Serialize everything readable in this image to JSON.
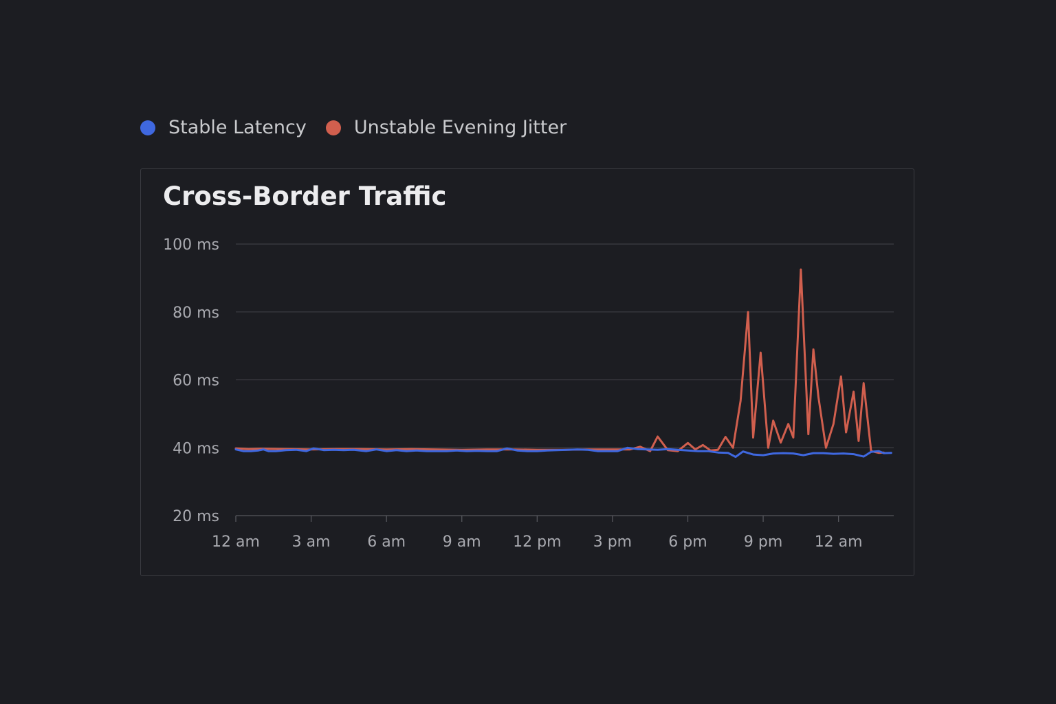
{
  "legend": [
    {
      "label": "Stable Latency",
      "color": "#3f68e0"
    },
    {
      "label": "Unstable Evening Jitter",
      "color": "#d15f4e"
    }
  ],
  "chart_data": {
    "type": "line",
    "title": "Cross-Border Traffic",
    "xlabel": "",
    "ylabel": "",
    "ylim": [
      20,
      100
    ],
    "xlim": [
      0,
      26.2
    ],
    "x_unit": "hours since 12 am",
    "grid": true,
    "legend_position": "top-left",
    "y_ticks": [
      {
        "value": 20,
        "label": "20 ms"
      },
      {
        "value": 40,
        "label": "40 ms"
      },
      {
        "value": 60,
        "label": "60 ms"
      },
      {
        "value": 80,
        "label": "80 ms"
      },
      {
        "value": 100,
        "label": "100 ms"
      }
    ],
    "x_ticks": [
      {
        "value": 0,
        "label": "12 am"
      },
      {
        "value": 3,
        "label": "3 am"
      },
      {
        "value": 6,
        "label": "6 am"
      },
      {
        "value": 9,
        "label": "9 am"
      },
      {
        "value": 12,
        "label": "12 pm"
      },
      {
        "value": 15,
        "label": "3 pm"
      },
      {
        "value": 18,
        "label": "6 pm"
      },
      {
        "value": 21,
        "label": "9 pm"
      },
      {
        "value": 24,
        "label": "12 am"
      }
    ],
    "series": [
      {
        "name": "Stable Latency",
        "color": "#3f68e0",
        "x": [
          0,
          0.3,
          0.6,
          0.9,
          1.1,
          1.3,
          1.6,
          2.0,
          2.4,
          2.8,
          3.1,
          3.5,
          3.9,
          4.3,
          4.7,
          5.2,
          5.6,
          6.0,
          6.4,
          6.8,
          7.2,
          7.6,
          8.0,
          8.4,
          8.8,
          9.2,
          9.6,
          10.0,
          10.4,
          10.8,
          11.2,
          11.6,
          12.0,
          12.4,
          12.8,
          13.2,
          13.6,
          14.0,
          14.4,
          14.8,
          15.2,
          15.6,
          16.0,
          16.4,
          16.8,
          17.2,
          17.6,
          18.0,
          18.4,
          18.8,
          19.2,
          19.6,
          19.9,
          20.2,
          20.6,
          21.0,
          21.4,
          21.8,
          22.2,
          22.6,
          23.0,
          23.4,
          23.8,
          24.2,
          24.6,
          25.0,
          25.3,
          25.6,
          25.8,
          26.1
        ],
        "values": [
          39.5,
          39.0,
          39.0,
          39.2,
          39.5,
          39.0,
          39.0,
          39.3,
          39.4,
          39.0,
          39.8,
          39.3,
          39.4,
          39.3,
          39.4,
          39.0,
          39.5,
          39.0,
          39.3,
          39.0,
          39.2,
          39.0,
          39.0,
          39.0,
          39.2,
          39.0,
          39.1,
          39.0,
          39.0,
          39.8,
          39.2,
          39.0,
          39.0,
          39.2,
          39.3,
          39.4,
          39.5,
          39.4,
          39.0,
          39.0,
          39.0,
          40.0,
          39.6,
          39.5,
          39.4,
          39.6,
          39.4,
          39.2,
          39.0,
          39.0,
          38.6,
          38.5,
          37.3,
          38.9,
          38.0,
          37.8,
          38.3,
          38.4,
          38.3,
          37.8,
          38.4,
          38.4,
          38.2,
          38.3,
          38.1,
          37.4,
          38.8,
          39.0,
          38.4,
          38.5
        ]
      },
      {
        "name": "Unstable Evening Jitter",
        "color": "#d15f4e",
        "x": [
          0,
          0.5,
          1.0,
          2.0,
          3.0,
          4.0,
          5.0,
          6.0,
          7.0,
          8.0,
          9.0,
          10.0,
          11.0,
          12.0,
          13.0,
          14.0,
          15.0,
          15.7,
          16.1,
          16.5,
          16.8,
          17.2,
          17.6,
          18.0,
          18.3,
          18.6,
          18.9,
          19.2,
          19.5,
          19.8,
          20.1,
          20.4,
          20.6,
          20.9,
          21.2,
          21.4,
          21.7,
          22.0,
          22.2,
          22.5,
          22.8,
          23.0,
          23.2,
          23.5,
          23.8,
          24.1,
          24.3,
          24.6,
          24.8,
          25.0,
          25.3,
          25.6,
          25.8
        ],
        "values": [
          39.8,
          39.6,
          39.7,
          39.6,
          39.5,
          39.6,
          39.6,
          39.5,
          39.6,
          39.5,
          39.4,
          39.5,
          39.5,
          39.4,
          39.4,
          39.5,
          39.5,
          39.5,
          40.3,
          39.0,
          43.3,
          39.3,
          39.0,
          41.4,
          39.5,
          40.8,
          39.2,
          39.4,
          43.2,
          40.0,
          53.8,
          80.0,
          43.0,
          68.0,
          40.0,
          48.0,
          41.5,
          47.0,
          43.0,
          92.5,
          44.0,
          69.0,
          55.0,
          40.0,
          47.0,
          61.0,
          44.5,
          56.5,
          42.0,
          59.0,
          39.0,
          38.5,
          38.6
        ]
      }
    ]
  }
}
